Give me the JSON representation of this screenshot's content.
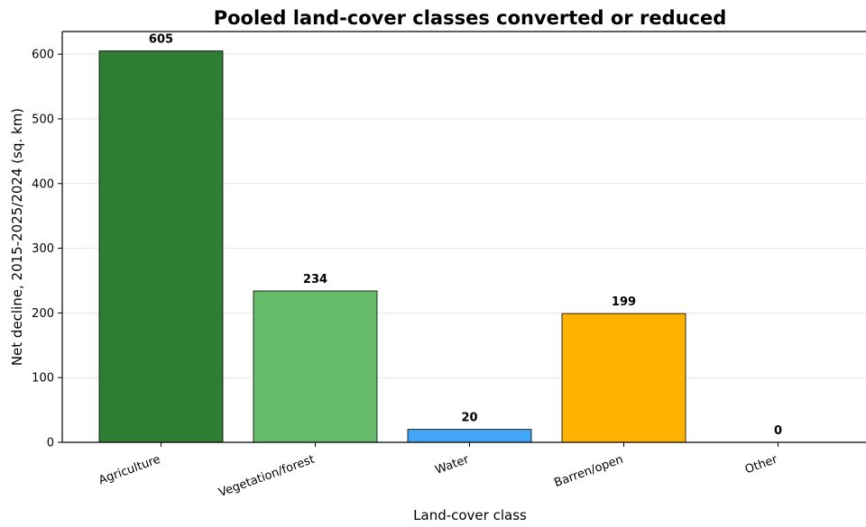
{
  "chart_data": {
    "type": "bar",
    "title": "Pooled land-cover classes converted or reduced",
    "xlabel": "Land-cover class",
    "ylabel": "Net decline, 2015-2025/2024 (sq. km)",
    "categories": [
      "Agriculture",
      "Vegetation/forest",
      "Water",
      "Barren/open",
      "Other"
    ],
    "values": [
      605,
      234,
      20,
      199,
      0
    ],
    "value_labels": [
      "605",
      "234",
      "20",
      "199",
      "0"
    ],
    "colors": [
      "#2e7d32",
      "#66bb6a",
      "#42a5f5",
      "#ffb300",
      "#9e9e9e"
    ],
    "ylim": [
      0,
      635
    ],
    "yticks": [
      0,
      100,
      200,
      300,
      400,
      500,
      600
    ],
    "grid": "horizontal",
    "legend": "none"
  }
}
